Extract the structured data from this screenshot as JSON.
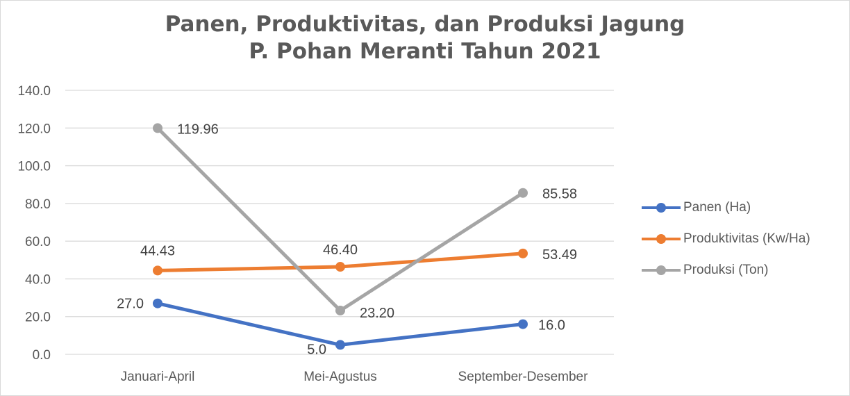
{
  "chart_data": {
    "type": "line",
    "title_line1": "Panen, Produktivitas, dan Produksi Jagung",
    "title_line2": "P. Pohan Meranti Tahun 2021",
    "categories": [
      "Januari-April",
      "Mei-Agustus",
      "September-Desember"
    ],
    "y_ticks": [
      "0.0",
      "20.0",
      "40.0",
      "60.0",
      "80.0",
      "100.0",
      "120.0",
      "140.0"
    ],
    "ylim": [
      0,
      140
    ],
    "grid": true,
    "legend_position": "right",
    "series": [
      {
        "name": "Panen (Ha)",
        "color": "#4472C4",
        "values": [
          27.0,
          5.0,
          16.0
        ],
        "labels": [
          "27.0",
          "5.0",
          "16.0"
        ]
      },
      {
        "name": "Produktivitas (Kw/Ha)",
        "color": "#ED7D31",
        "values": [
          44.43,
          46.4,
          53.49
        ],
        "labels": [
          "44.43",
          "46.40",
          "53.49"
        ]
      },
      {
        "name": "Produksi (Ton)",
        "color": "#A5A5A5",
        "values": [
          119.96,
          23.2,
          85.58
        ],
        "labels": [
          "119.96",
          "23.20",
          "85.58"
        ]
      }
    ]
  }
}
